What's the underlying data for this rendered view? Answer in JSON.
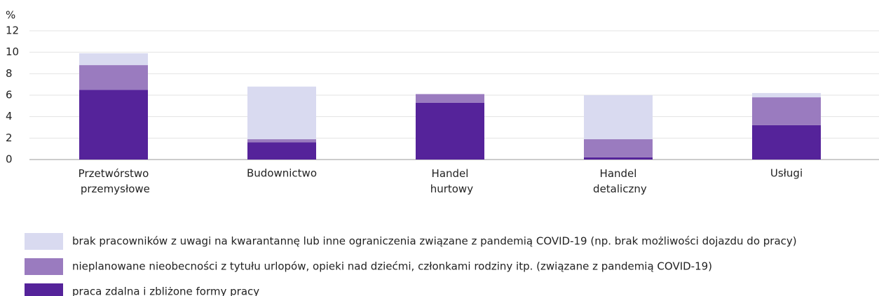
{
  "chart_data": {
    "type": "stacked_bar",
    "y_label": "%",
    "categories": [
      "Przetwórstwo przemysłowe",
      "Budownictwo",
      "Handel hurtowy",
      "Handel detaliczny",
      "Usługi"
    ],
    "series": [
      {
        "name": "praca zdalna i zbliżone formy pracy",
        "color": "#55239a",
        "values": [
          6.5,
          1.6,
          5.3,
          0.2,
          3.2
        ]
      },
      {
        "name": "nieplanowane nieobecności z tytułu urlopów, opieki nad dziećmi, członkami rodziny itp. (związane z pandemią COVID-19)",
        "color": "#9a7bbf",
        "values": [
          2.3,
          0.3,
          0.8,
          1.7,
          2.6
        ]
      },
      {
        "name": "brak pracowników z uwagi na kwarantannę lub inne ograniczenia związane z pandemią COVID-19 (np. brak możliwości dojazdu do pracy)",
        "color": "#d9daf0",
        "values": [
          1.1,
          4.9,
          0,
          4.1,
          0.4
        ]
      }
    ],
    "ylim": [
      0,
      12
    ],
    "yticks": [
      0,
      2,
      4,
      6,
      8,
      10,
      12
    ],
    "grid": true
  }
}
